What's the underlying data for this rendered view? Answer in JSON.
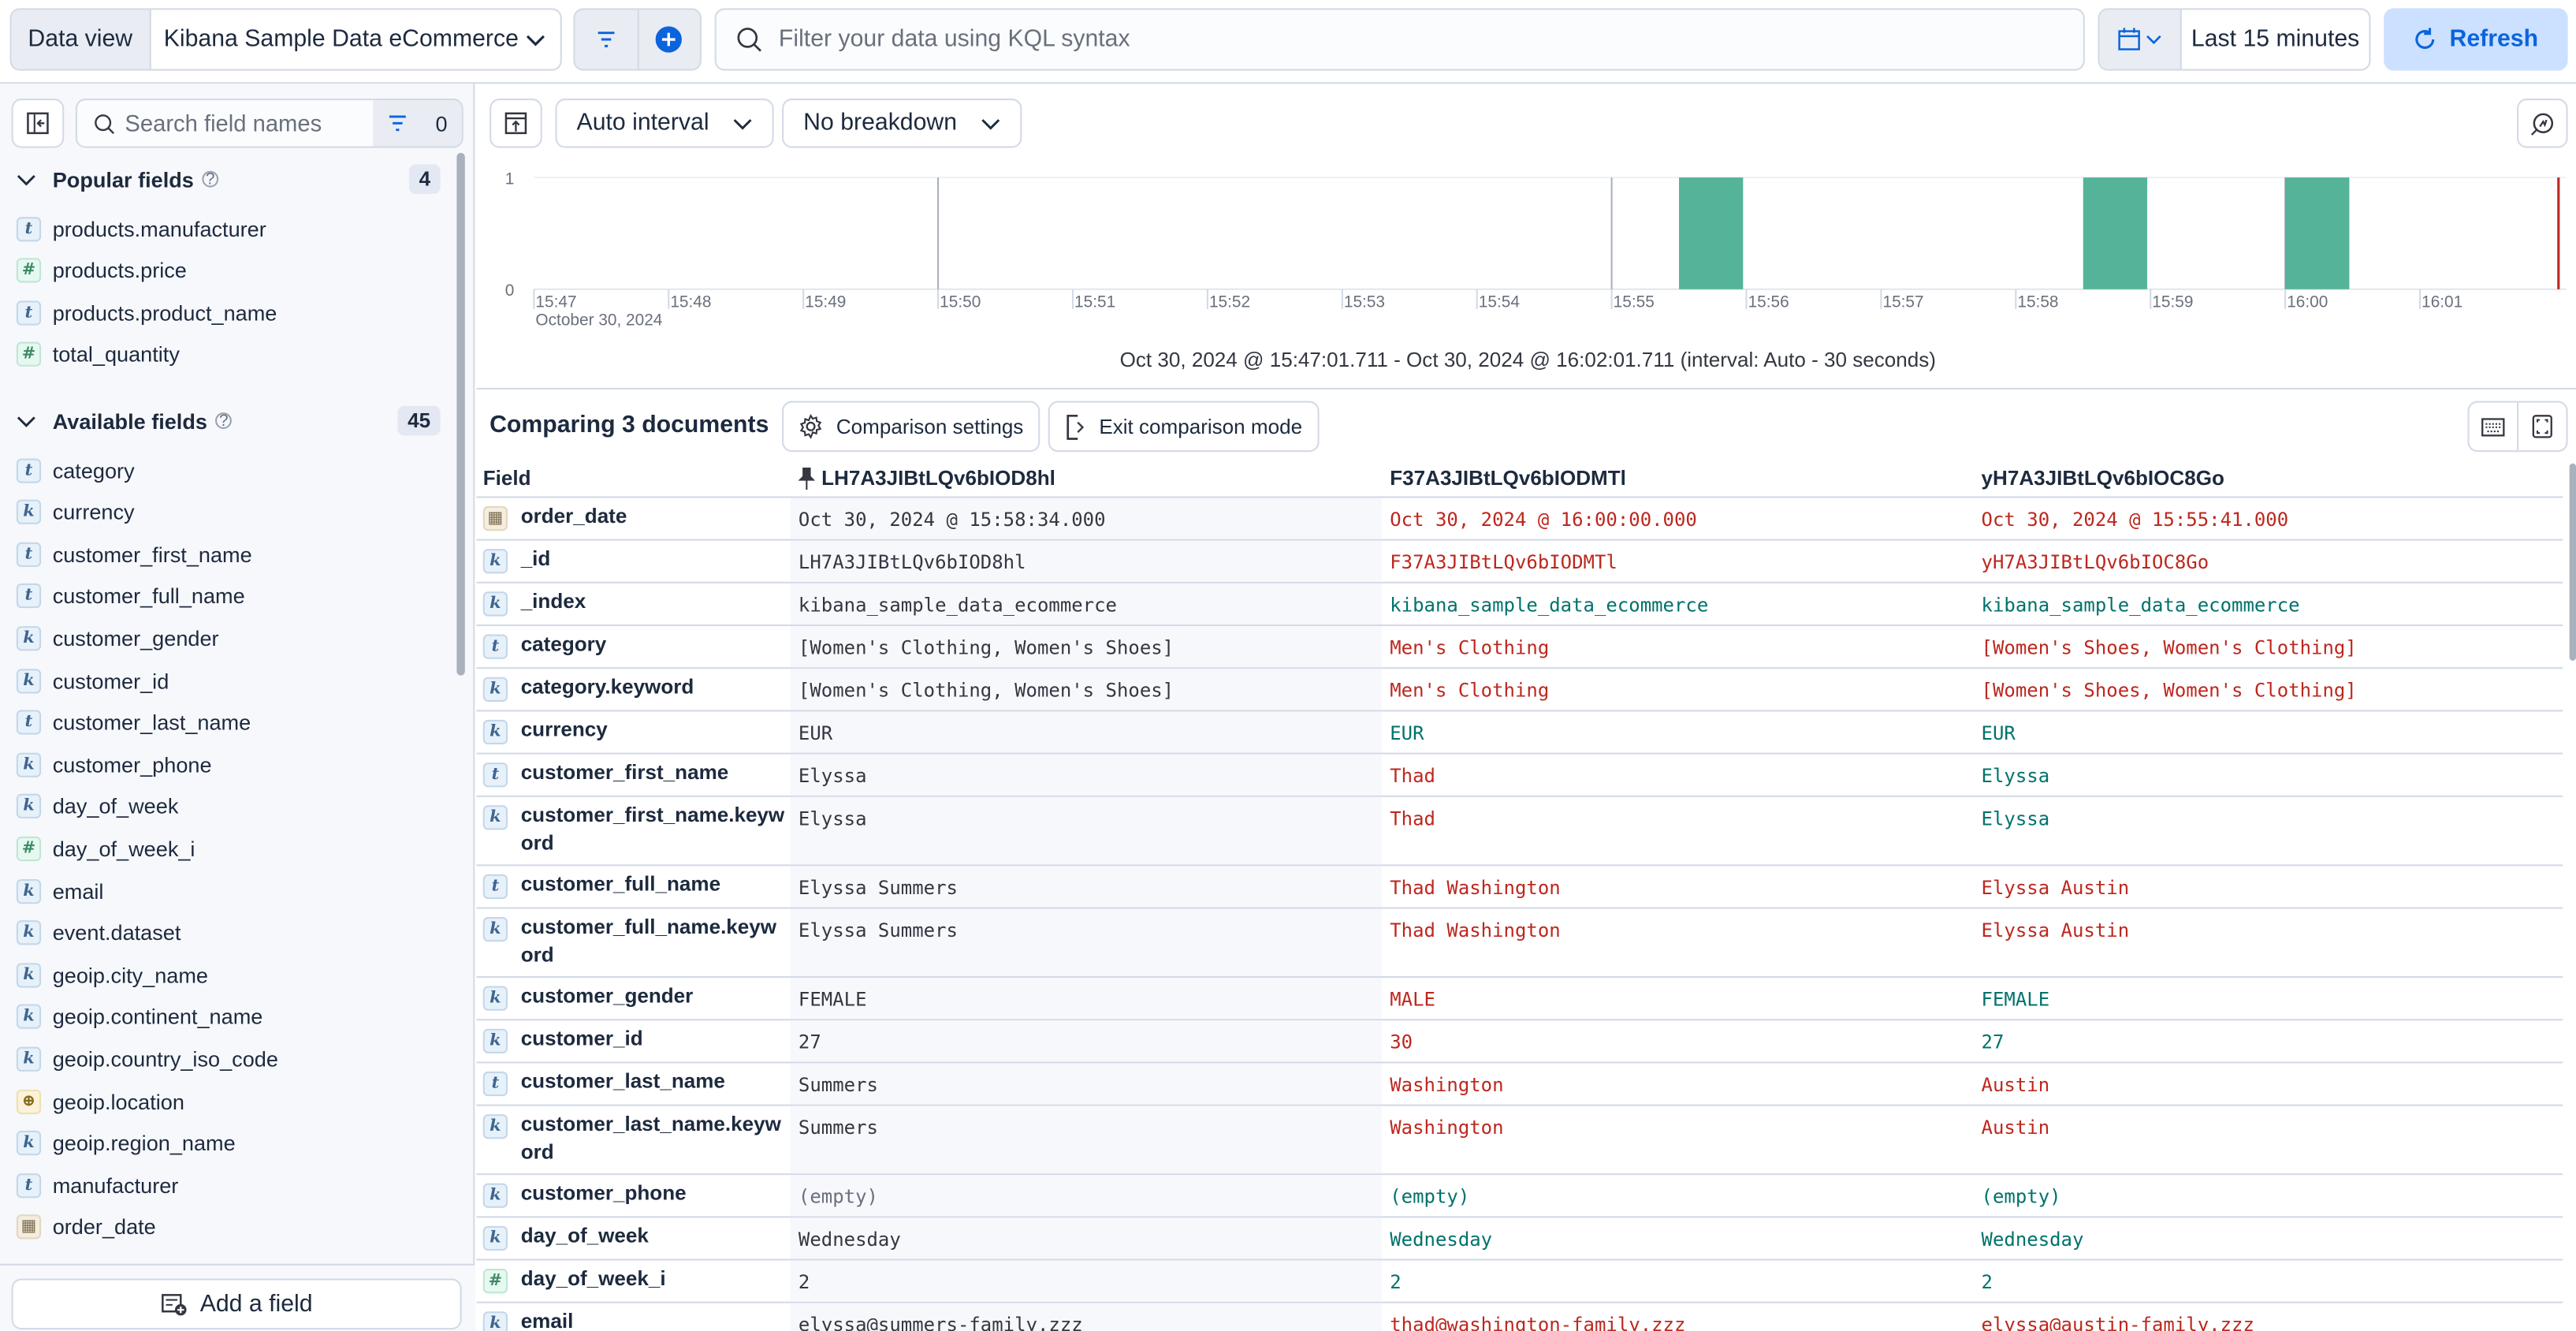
{
  "topbar": {
    "data_view_label": "Data view",
    "data_view_value": "Kibana Sample Data eCommerce",
    "query_placeholder": "Filter your data using KQL syntax",
    "query_value": "",
    "time_range": "Last 15 minutes",
    "refresh_label": "Refresh",
    "accent": "#0b64dd"
  },
  "sidebar": {
    "search_placeholder": "Search field names",
    "filter_count": "0",
    "popular": {
      "title": "Popular fields",
      "count": "4",
      "items": [
        {
          "name": "products.manufacturer",
          "type": "t"
        },
        {
          "name": "products.price",
          "type": "#"
        },
        {
          "name": "products.product_name",
          "type": "t"
        },
        {
          "name": "total_quantity",
          "type": "#"
        }
      ]
    },
    "available": {
      "title": "Available fields",
      "count": "45",
      "items": [
        {
          "name": "category",
          "type": "t"
        },
        {
          "name": "currency",
          "type": "k"
        },
        {
          "name": "customer_first_name",
          "type": "t"
        },
        {
          "name": "customer_full_name",
          "type": "t"
        },
        {
          "name": "customer_gender",
          "type": "k"
        },
        {
          "name": "customer_id",
          "type": "k"
        },
        {
          "name": "customer_last_name",
          "type": "t"
        },
        {
          "name": "customer_phone",
          "type": "k"
        },
        {
          "name": "day_of_week",
          "type": "k"
        },
        {
          "name": "day_of_week_i",
          "type": "#"
        },
        {
          "name": "email",
          "type": "k"
        },
        {
          "name": "event.dataset",
          "type": "k"
        },
        {
          "name": "geoip.city_name",
          "type": "k"
        },
        {
          "name": "geoip.continent_name",
          "type": "k"
        },
        {
          "name": "geoip.country_iso_code",
          "type": "k"
        },
        {
          "name": "geoip.location",
          "type": "geo"
        },
        {
          "name": "geoip.region_name",
          "type": "k"
        },
        {
          "name": "manufacturer",
          "type": "t"
        },
        {
          "name": "order_date",
          "type": "date"
        }
      ]
    },
    "add_field_label": "Add a field"
  },
  "toolbar": {
    "interval": "Auto interval",
    "breakdown": "No breakdown"
  },
  "chart_data": {
    "type": "bar",
    "x": [
      "15:55:30",
      "15:58:30",
      "16:00:00"
    ],
    "values": [
      1,
      1,
      1
    ],
    "bar_width_seconds": 30,
    "xlim": [
      "15:47:01.711",
      "16:02:01.711"
    ],
    "ylim": [
      0,
      1
    ],
    "yticks": [
      "0",
      "1"
    ],
    "xticks": [
      "15:47",
      "15:48",
      "15:49",
      "15:50",
      "15:51",
      "15:52",
      "15:53",
      "15:54",
      "15:55",
      "15:56",
      "15:57",
      "15:58",
      "15:59",
      "16:00",
      "16:01"
    ],
    "x_sublabel": "October 30, 2024",
    "color": "#54b399",
    "now_marker_color": "#bd271e",
    "caption": "Oct 30, 2024 @ 15:47:01.711 - Oct 30, 2024 @ 16:02:01.711 (interval: Auto - 30 seconds)"
  },
  "comparison": {
    "title": "Comparing 3 documents",
    "settings_label": "Comparison settings",
    "exit_label": "Exit comparison mode",
    "field_header": "Field",
    "documents": [
      "LH7A3JIBtLQv6bIOD8hl",
      "F37A3JIBtLQv6bIODMTl",
      "yH7A3JIBtLQv6bIOC8Go"
    ],
    "colors": {
      "diff": "#bd271e",
      "same": "#00726b"
    },
    "rows": [
      {
        "field": "order_date",
        "type": "date",
        "values": [
          "Oct 30, 2024 @ 15:58:34.000",
          "Oct 30, 2024 @ 16:00:00.000",
          "Oct 30, 2024 @ 15:55:41.000"
        ],
        "states": [
          "base",
          "diff",
          "diff"
        ]
      },
      {
        "field": "_id",
        "type": "k",
        "values": [
          "LH7A3JIBtLQv6bIOD8hl",
          "F37A3JIBtLQv6bIODMTl",
          "yH7A3JIBtLQv6bIOC8Go"
        ],
        "states": [
          "base",
          "diff",
          "diff"
        ]
      },
      {
        "field": "_index",
        "type": "k",
        "values": [
          "kibana_sample_data_ecommerce",
          "kibana_sample_data_ecommerce",
          "kibana_sample_data_ecommerce"
        ],
        "states": [
          "base",
          "same",
          "same"
        ]
      },
      {
        "field": "category",
        "type": "t",
        "values": [
          "[Women's Clothing, Women's Shoes]",
          "Men's Clothing",
          "[Women's Shoes, Women's Clothing]"
        ],
        "states": [
          "base",
          "diff",
          "diff"
        ]
      },
      {
        "field": "category.keyword",
        "type": "k",
        "values": [
          "[Women's Clothing, Women's Shoes]",
          "Men's Clothing",
          "[Women's Shoes, Women's Clothing]"
        ],
        "states": [
          "base",
          "diff",
          "diff"
        ]
      },
      {
        "field": "currency",
        "type": "k",
        "values": [
          "EUR",
          "EUR",
          "EUR"
        ],
        "states": [
          "base",
          "same",
          "same"
        ]
      },
      {
        "field": "customer_first_name",
        "type": "t",
        "values": [
          "Elyssa",
          "Thad",
          "Elyssa"
        ],
        "states": [
          "base",
          "diff",
          "same"
        ]
      },
      {
        "field": "customer_first_name.keyword",
        "type": "k",
        "values": [
          "Elyssa",
          "Thad",
          "Elyssa"
        ],
        "states": [
          "base",
          "diff",
          "same"
        ]
      },
      {
        "field": "customer_full_name",
        "type": "t",
        "values": [
          "Elyssa Summers",
          "Thad Washington",
          "Elyssa Austin"
        ],
        "states": [
          "base",
          "diff",
          "diff"
        ]
      },
      {
        "field": "customer_full_name.keyword",
        "type": "k",
        "values": [
          "Elyssa Summers",
          "Thad Washington",
          "Elyssa Austin"
        ],
        "states": [
          "base",
          "diff",
          "diff"
        ]
      },
      {
        "field": "customer_gender",
        "type": "k",
        "values": [
          "FEMALE",
          "MALE",
          "FEMALE"
        ],
        "states": [
          "base",
          "diff",
          "same"
        ]
      },
      {
        "field": "customer_id",
        "type": "k",
        "values": [
          "27",
          "30",
          "27"
        ],
        "states": [
          "base",
          "diff",
          "same"
        ]
      },
      {
        "field": "customer_last_name",
        "type": "t",
        "values": [
          "Summers",
          "Washington",
          "Austin"
        ],
        "states": [
          "base",
          "diff",
          "diff"
        ]
      },
      {
        "field": "customer_last_name.keyword",
        "type": "k",
        "values": [
          "Summers",
          "Washington",
          "Austin"
        ],
        "states": [
          "base",
          "diff",
          "diff"
        ]
      },
      {
        "field": "customer_phone",
        "type": "k",
        "values": [
          "(empty)",
          "(empty)",
          "(empty)"
        ],
        "states": [
          "empty",
          "same",
          "same"
        ]
      },
      {
        "field": "day_of_week",
        "type": "k",
        "values": [
          "Wednesday",
          "Wednesday",
          "Wednesday"
        ],
        "states": [
          "base",
          "same",
          "same"
        ]
      },
      {
        "field": "day_of_week_i",
        "type": "#",
        "values": [
          "2",
          "2",
          "2"
        ],
        "states": [
          "base",
          "same",
          "same"
        ]
      },
      {
        "field": "email",
        "type": "k",
        "values": [
          "elyssa@summers-family.zzz",
          "thad@washington-family.zzz",
          "elyssa@austin-family.zzz"
        ],
        "states": [
          "base",
          "diff",
          "diff"
        ]
      }
    ]
  }
}
